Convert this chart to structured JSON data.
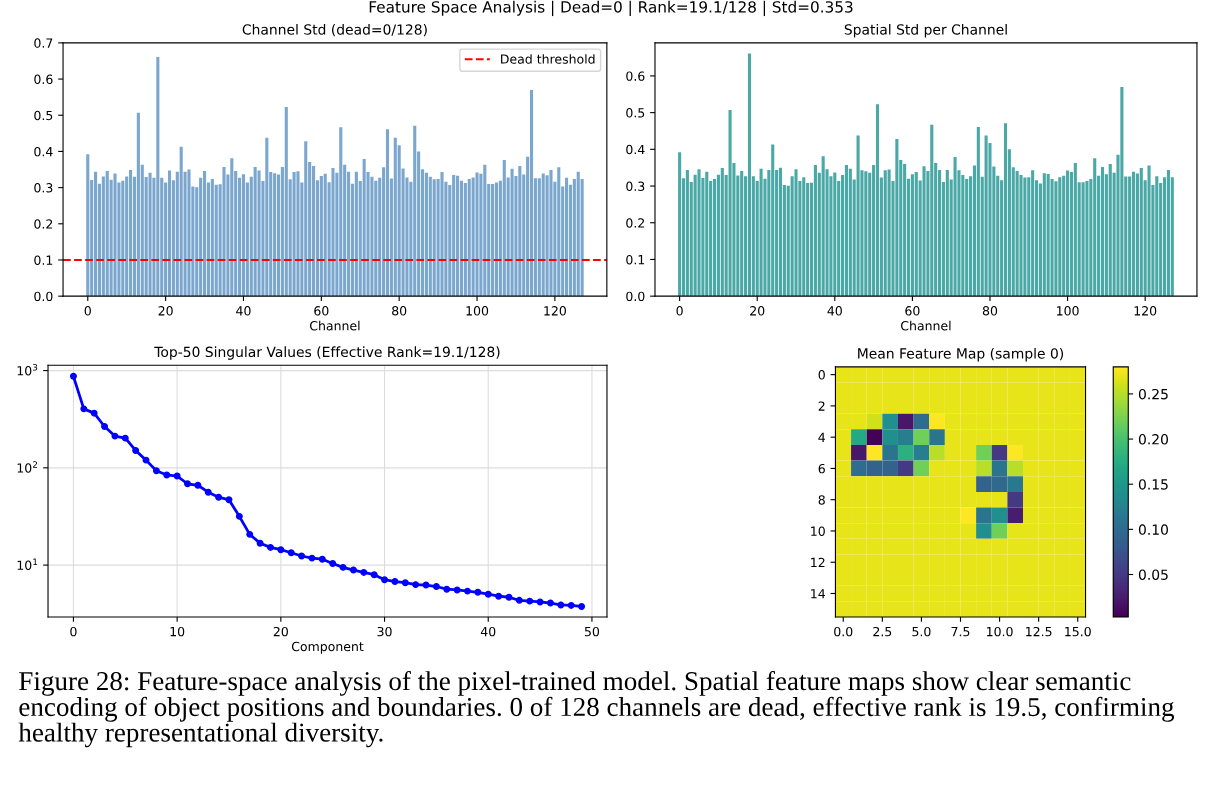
{
  "chart_data": [
    {
      "type": "bar",
      "title": "Channel Std (dead=0/128)",
      "xlabel": "Channel",
      "annotations": [
        "Feature Space Analysis | Dead=0 | Rank=19.1/128 | Std=0.353",
        "Figure 28: Feature-space analysis of the pixel-trained model. Spatial feature maps show clear semantic encoding of object positions and boundaries. 0 of 128 channels are dead, effective rank is 19.5, confirming healthy representational diversity."
      ],
      "x": [
        0,
        1,
        2,
        3,
        4,
        5,
        6,
        7,
        8,
        9,
        10,
        11,
        12,
        13,
        14,
        15,
        16,
        17,
        18,
        19,
        20,
        21,
        22,
        23,
        24,
        25,
        26,
        27,
        28,
        29,
        30,
        31,
        32,
        33,
        34,
        35,
        36,
        37,
        38,
        39,
        40,
        41,
        42,
        43,
        44,
        45,
        46,
        47,
        48,
        49,
        50,
        51,
        52,
        53,
        54,
        55,
        56,
        57,
        58,
        59,
        60,
        61,
        62,
        63,
        64,
        65,
        66,
        67,
        68,
        69,
        70,
        71,
        72,
        73,
        74,
        75,
        76,
        77,
        78,
        79,
        80,
        81,
        82,
        83,
        84,
        85,
        86,
        87,
        88,
        89,
        90,
        91,
        92,
        93,
        94,
        95,
        96,
        97,
        98,
        99,
        100,
        101,
        102,
        103,
        104,
        105,
        106,
        107,
        108,
        109,
        110,
        111,
        112,
        113,
        114,
        115,
        116,
        117,
        118,
        119,
        120,
        121,
        122,
        123,
        124,
        125,
        126,
        127
      ],
      "series": [
        {
          "color": "#7ba7cf",
          "values": [
            0.392,
            0.321,
            0.344,
            0.311,
            0.331,
            0.346,
            0.322,
            0.339,
            0.314,
            0.319,
            0.331,
            0.349,
            0.33,
            0.507,
            0.363,
            0.329,
            0.341,
            0.327,
            0.661,
            0.327,
            0.314,
            0.347,
            0.32,
            0.344,
            0.413,
            0.344,
            0.35,
            0.303,
            0.301,
            0.327,
            0.346,
            0.314,
            0.324,
            0.308,
            0.309,
            0.357,
            0.336,
            0.381,
            0.346,
            0.327,
            0.337,
            0.314,
            0.33,
            0.357,
            0.347,
            0.318,
            0.438,
            0.343,
            0.34,
            0.336,
            0.357,
            0.523,
            0.323,
            0.343,
            0.345,
            0.314,
            0.428,
            0.371,
            0.36,
            0.32,
            0.332,
            0.338,
            0.315,
            0.354,
            0.341,
            0.467,
            0.363,
            0.344,
            0.311,
            0.344,
            0.318,
            0.379,
            0.343,
            0.33,
            0.319,
            0.327,
            0.356,
            0.461,
            0.325,
            0.438,
            0.417,
            0.353,
            0.328,
            0.316,
            0.471,
            0.4,
            0.351,
            0.341,
            0.33,
            0.323,
            0.324,
            0.343,
            0.316,
            0.307,
            0.335,
            0.333,
            0.319,
            0.313,
            0.324,
            0.328,
            0.342,
            0.338,
            0.363,
            0.31,
            0.31,
            0.314,
            0.319,
            0.376,
            0.328,
            0.352,
            0.332,
            0.36,
            0.336,
            0.385,
            0.57,
            0.326,
            0.326,
            0.339,
            0.334,
            0.349,
            0.316,
            0.356,
            0.303,
            0.327,
            0.308,
            0.324,
            0.344,
            0.324
          ]
        }
      ],
      "ref_lines": [
        {
          "axis": "y",
          "value": 0.1,
          "label": "Dead threshold",
          "color": "#ff0000",
          "line_style": "dashed"
        }
      ],
      "legend": "top right",
      "grid": false,
      "xlim": [
        -6.35,
        133.35
      ],
      "xticks": [
        0,
        20,
        40,
        60,
        80,
        100,
        120
      ],
      "ylim": [
        0,
        0.7
      ],
      "yticks": [
        {
          "value": 0,
          "label": "0.0"
        },
        0.1,
        0.2,
        0.3,
        0.4,
        0.5,
        0.6,
        0.7
      ]
    },
    {
      "type": "bar",
      "title": "Spatial Std per Channel",
      "xlabel": "Channel",
      "x": [
        0,
        1,
        2,
        3,
        4,
        5,
        6,
        7,
        8,
        9,
        10,
        11,
        12,
        13,
        14,
        15,
        16,
        17,
        18,
        19,
        20,
        21,
        22,
        23,
        24,
        25,
        26,
        27,
        28,
        29,
        30,
        31,
        32,
        33,
        34,
        35,
        36,
        37,
        38,
        39,
        40,
        41,
        42,
        43,
        44,
        45,
        46,
        47,
        48,
        49,
        50,
        51,
        52,
        53,
        54,
        55,
        56,
        57,
        58,
        59,
        60,
        61,
        62,
        63,
        64,
        65,
        66,
        67,
        68,
        69,
        70,
        71,
        72,
        73,
        74,
        75,
        76,
        77,
        78,
        79,
        80,
        81,
        82,
        83,
        84,
        85,
        86,
        87,
        88,
        89,
        90,
        91,
        92,
        93,
        94,
        95,
        96,
        97,
        98,
        99,
        100,
        101,
        102,
        103,
        104,
        105,
        106,
        107,
        108,
        109,
        110,
        111,
        112,
        113,
        114,
        115,
        116,
        117,
        118,
        119,
        120,
        121,
        122,
        123,
        124,
        125,
        126,
        127
      ],
      "series": [
        {
          "color": "#4aa8a6",
          "values": [
            0.392,
            0.321,
            0.344,
            0.311,
            0.331,
            0.346,
            0.322,
            0.339,
            0.314,
            0.319,
            0.331,
            0.349,
            0.33,
            0.507,
            0.363,
            0.329,
            0.341,
            0.327,
            0.661,
            0.327,
            0.314,
            0.347,
            0.32,
            0.344,
            0.413,
            0.344,
            0.35,
            0.303,
            0.301,
            0.327,
            0.346,
            0.314,
            0.324,
            0.308,
            0.309,
            0.357,
            0.336,
            0.381,
            0.346,
            0.327,
            0.337,
            0.314,
            0.33,
            0.357,
            0.347,
            0.318,
            0.438,
            0.343,
            0.34,
            0.336,
            0.357,
            0.523,
            0.323,
            0.343,
            0.345,
            0.314,
            0.428,
            0.371,
            0.36,
            0.32,
            0.332,
            0.338,
            0.315,
            0.354,
            0.341,
            0.467,
            0.363,
            0.344,
            0.311,
            0.344,
            0.318,
            0.379,
            0.343,
            0.33,
            0.319,
            0.327,
            0.356,
            0.461,
            0.325,
            0.438,
            0.417,
            0.353,
            0.328,
            0.316,
            0.471,
            0.4,
            0.351,
            0.341,
            0.33,
            0.323,
            0.324,
            0.343,
            0.316,
            0.307,
            0.335,
            0.333,
            0.319,
            0.313,
            0.324,
            0.328,
            0.342,
            0.338,
            0.363,
            0.31,
            0.31,
            0.314,
            0.319,
            0.376,
            0.328,
            0.352,
            0.332,
            0.36,
            0.336,
            0.385,
            0.57,
            0.326,
            0.326,
            0.339,
            0.334,
            0.349,
            0.316,
            0.356,
            0.303,
            0.327,
            0.308,
            0.324,
            0.344,
            0.324
          ]
        }
      ],
      "grid": false,
      "xlim": [
        -6.35,
        133.35
      ],
      "xticks": [
        0,
        20,
        40,
        60,
        80,
        100,
        120
      ],
      "ylim": [
        0,
        0.69
      ],
      "yticks": [
        {
          "value": 0,
          "label": "0.0"
        },
        0.1,
        0.2,
        0.3,
        0.4,
        0.5,
        0.6
      ]
    },
    {
      "type": "line",
      "title": "Top-50 Singular Values (Effective Rank=19.1/128)",
      "xlabel": "Component",
      "x": [
        0,
        1,
        2,
        3,
        4,
        5,
        6,
        7,
        8,
        9,
        10,
        11,
        12,
        13,
        14,
        15,
        16,
        17,
        18,
        19,
        20,
        21,
        22,
        23,
        24,
        25,
        26,
        27,
        28,
        29,
        30,
        31,
        32,
        33,
        34,
        35,
        36,
        37,
        38,
        39,
        40,
        41,
        42,
        43,
        44,
        45,
        46,
        47,
        48,
        49
      ],
      "series": [
        {
          "color": "#0000ff",
          "values": [
            873,
            404,
            365,
            266,
            212,
            202,
            151,
            120,
            93.4,
            84.5,
            82.3,
            68.6,
            66.2,
            56.2,
            49.9,
            46.9,
            31.7,
            20.7,
            16.8,
            15.2,
            14.4,
            13.4,
            12.4,
            11.8,
            11.5,
            10.4,
            9.47,
            8.89,
            8.41,
            7.97,
            7.08,
            6.77,
            6.59,
            6.3,
            6.24,
            6.02,
            5.65,
            5.55,
            5.4,
            5.25,
            5.02,
            4.79,
            4.67,
            4.34,
            4.26,
            4.18,
            4.07,
            3.89,
            3.85,
            3.75
          ]
        }
      ],
      "marker": "circle",
      "line_style": "solid",
      "log": "y",
      "grid": true,
      "xlim": [
        -2.45,
        51.45
      ],
      "xticks": [
        0,
        10,
        20,
        30,
        40,
        50
      ],
      "ylim": [
        2.93,
        1135
      ],
      "yticks": [
        {
          "value": 10,
          "label": "10$^{1}$"
        },
        {
          "value": 100,
          "label": "10$^{2}$"
        },
        {
          "value": 1000,
          "label": "10$^{3}$"
        }
      ]
    },
    {
      "type": "heatmap",
      "title": "Mean Feature Map (sample 0)",
      "cells": [
        [
          0.27,
          0.27,
          0.27,
          0.27,
          0.27,
          0.27,
          0.27,
          0.27,
          0.27,
          0.27,
          0.27,
          0.27,
          0.27,
          0.27,
          0.27,
          0.27
        ],
        [
          0.27,
          0.27,
          0.27,
          0.27,
          0.27,
          0.27,
          0.27,
          0.27,
          0.27,
          0.27,
          0.27,
          0.27,
          0.27,
          0.27,
          0.27,
          0.27
        ],
        [
          0.27,
          0.27,
          0.27,
          0.27,
          0.27,
          0.27,
          0.27,
          0.27,
          0.27,
          0.27,
          0.27,
          0.27,
          0.27,
          0.27,
          0.27,
          0.27
        ],
        [
          0.27,
          0.27,
          0.26,
          0.14,
          0.02,
          0.1,
          0.28,
          0.27,
          0.27,
          0.27,
          0.27,
          0.27,
          0.27,
          0.27,
          0.27,
          0.27
        ],
        [
          0.27,
          0.17,
          0.005,
          0.14,
          0.12,
          0.22,
          0.11,
          0.27,
          0.27,
          0.27,
          0.27,
          0.27,
          0.27,
          0.27,
          0.27,
          0.27
        ],
        [
          0.27,
          0.02,
          0.28,
          0.11,
          0.18,
          0.12,
          0.25,
          0.27,
          0.27,
          0.22,
          0.05,
          0.28,
          0.27,
          0.27,
          0.27,
          0.27
        ],
        [
          0.27,
          0.1,
          0.09,
          0.09,
          0.05,
          0.22,
          0.27,
          0.27,
          0.27,
          0.25,
          0.11,
          0.25,
          0.27,
          0.27,
          0.27,
          0.27
        ],
        [
          0.27,
          0.27,
          0.27,
          0.27,
          0.27,
          0.27,
          0.27,
          0.27,
          0.27,
          0.09,
          0.095,
          0.115,
          0.27,
          0.27,
          0.27,
          0.27
        ],
        [
          0.27,
          0.27,
          0.27,
          0.27,
          0.27,
          0.27,
          0.27,
          0.27,
          0.27,
          0.27,
          0.27,
          0.05,
          0.27,
          0.27,
          0.27,
          0.27
        ],
        [
          0.27,
          0.27,
          0.27,
          0.27,
          0.27,
          0.27,
          0.27,
          0.27,
          0.28,
          0.11,
          0.14,
          0.025,
          0.27,
          0.27,
          0.27,
          0.27
        ],
        [
          0.27,
          0.27,
          0.27,
          0.27,
          0.27,
          0.27,
          0.27,
          0.27,
          0.27,
          0.14,
          0.22,
          0.27,
          0.27,
          0.27,
          0.27,
          0.27
        ],
        [
          0.27,
          0.27,
          0.27,
          0.27,
          0.27,
          0.27,
          0.27,
          0.27,
          0.27,
          0.27,
          0.27,
          0.27,
          0.27,
          0.27,
          0.27,
          0.27
        ],
        [
          0.27,
          0.27,
          0.27,
          0.27,
          0.27,
          0.27,
          0.27,
          0.27,
          0.27,
          0.27,
          0.27,
          0.27,
          0.27,
          0.27,
          0.27,
          0.27
        ],
        [
          0.27,
          0.27,
          0.27,
          0.27,
          0.27,
          0.27,
          0.27,
          0.27,
          0.27,
          0.27,
          0.27,
          0.27,
          0.27,
          0.27,
          0.27,
          0.27
        ],
        [
          0.27,
          0.27,
          0.27,
          0.27,
          0.27,
          0.27,
          0.27,
          0.27,
          0.27,
          0.27,
          0.27,
          0.27,
          0.27,
          0.27,
          0.27,
          0.27
        ],
        [
          0.27,
          0.27,
          0.27,
          0.27,
          0.27,
          0.27,
          0.27,
          0.27,
          0.27,
          0.27,
          0.27,
          0.27,
          0.27,
          0.27,
          0.27,
          0.27
        ]
      ],
      "clim": [
        0.003,
        0.28
      ],
      "cticks": [
        {
          "value": 0.05,
          "label": "0.05"
        },
        {
          "value": 0.1,
          "label": "0.10"
        },
        {
          "value": 0.15,
          "label": "0.15"
        },
        {
          "value": 0.2,
          "label": "0.20"
        },
        {
          "value": 0.25,
          "label": "0.25"
        }
      ],
      "xlim": [
        -0.5,
        15.5
      ],
      "xticks": [
        {
          "value": 0,
          "label": "0.0"
        },
        2.5,
        {
          "value": 5,
          "label": "5.0"
        },
        7.5,
        {
          "value": 10,
          "label": "10.0"
        },
        12.5,
        {
          "value": 15,
          "label": "15.0"
        }
      ],
      "ylim": [
        15.5,
        -0.5
      ],
      "yticks": [
        0,
        2,
        4,
        6,
        8,
        10,
        12,
        14
      ]
    }
  ]
}
